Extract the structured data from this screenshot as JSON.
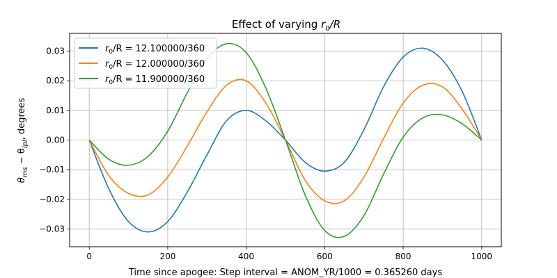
{
  "chart_data": {
    "type": "line",
    "title_prefix": "Effect of varying ",
    "title_math": "r",
    "title_sub": "0",
    "title_suffix": "/R",
    "xlabel": "Time since apogee: Step interval = ANOM_YR/1000 = 0.365260 days",
    "ylabel_main": "θ",
    "ylabel_sub1": "ms",
    "ylabel_mid": " − θ",
    "ylabel_sub2": "lpl",
    "ylabel_suffix": ", degrees",
    "xlim": [
      -50,
      1050
    ],
    "ylim": [
      -0.036,
      0.036
    ],
    "xticks": [
      0,
      200,
      400,
      600,
      800,
      1000
    ],
    "xtick_labels": [
      "0",
      "200",
      "400",
      "600",
      "800",
      "1000"
    ],
    "yticks": [
      -0.03,
      -0.02,
      -0.01,
      0.0,
      0.01,
      0.02,
      0.03
    ],
    "ytick_labels": [
      "−0.03",
      "−0.02",
      "−0.01",
      "0.00",
      "0.01",
      "0.02",
      "0.03"
    ],
    "grid": true,
    "legend_position": "top-left",
    "series": [
      {
        "name_prefix": "r",
        "name_sub": "0",
        "name_suffix": "/R = 12.100000/360",
        "color": "#1f77b4",
        "x": [
          0,
          50,
          100,
          150,
          200,
          250,
          300,
          350,
          400,
          450,
          500,
          550,
          600,
          650,
          700,
          750,
          800,
          850,
          900,
          950,
          1000
        ],
        "y": [
          0,
          -0.0165,
          -0.0275,
          -0.031,
          -0.0275,
          -0.0175,
          -0.005,
          0.0065,
          0.01,
          0.0065,
          0,
          -0.0075,
          -0.0105,
          -0.0075,
          0.0035,
          0.018,
          0.028,
          0.031,
          0.027,
          0.0165,
          0
        ]
      },
      {
        "name_prefix": "r",
        "name_sub": "0",
        "name_suffix": "/R = 12.000000/360",
        "color": "#ff7f0e",
        "x": [
          0,
          50,
          100,
          150,
          200,
          250,
          300,
          350,
          400,
          450,
          500,
          550,
          600,
          650,
          700,
          750,
          800,
          850,
          900,
          950,
          1000
        ],
        "y": [
          0,
          -0.012,
          -0.018,
          -0.0185,
          -0.0125,
          -0.002,
          0.0095,
          0.0185,
          0.02,
          0.0125,
          0,
          -0.0135,
          -0.0205,
          -0.0205,
          -0.0125,
          0.0005,
          0.0125,
          0.0185,
          0.018,
          0.0105,
          0
        ]
      },
      {
        "name_prefix": "r",
        "name_sub": "0",
        "name_suffix": "/R = 11.900000/360",
        "color": "#2ca02c",
        "x": [
          0,
          50,
          100,
          150,
          200,
          250,
          300,
          350,
          400,
          450,
          500,
          550,
          600,
          650,
          700,
          750,
          800,
          850,
          900,
          950,
          1000
        ],
        "y": [
          0,
          -0.0065,
          -0.0085,
          -0.0055,
          0.003,
          0.016,
          0.0275,
          0.0325,
          0.0295,
          0.0175,
          0,
          -0.0185,
          -0.0305,
          -0.0325,
          -0.0255,
          -0.0115,
          0.001,
          0.0075,
          0.0085,
          0.0055,
          0
        ]
      }
    ]
  }
}
